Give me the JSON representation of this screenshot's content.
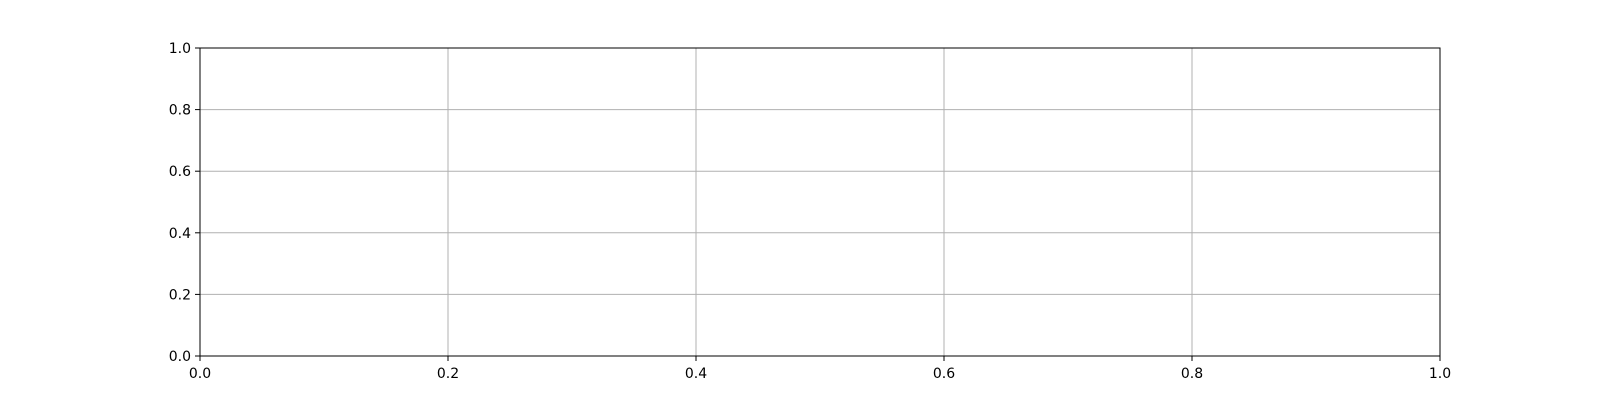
{
  "chart_data": {
    "type": "line",
    "title": "",
    "xlabel": "",
    "ylabel": "",
    "series": [],
    "xlim": [
      0.0,
      1.0
    ],
    "ylim": [
      0.0,
      1.0
    ],
    "x_ticks": [
      "0.0",
      "0.2",
      "0.4",
      "0.6",
      "0.8",
      "1.0"
    ],
    "y_ticks": [
      "0.0",
      "0.2",
      "0.4",
      "0.6",
      "0.8",
      "1.0"
    ],
    "grid": true,
    "colors": {
      "grid": "#b0b0b0",
      "axes": "#000000",
      "background": "#ffffff"
    }
  }
}
